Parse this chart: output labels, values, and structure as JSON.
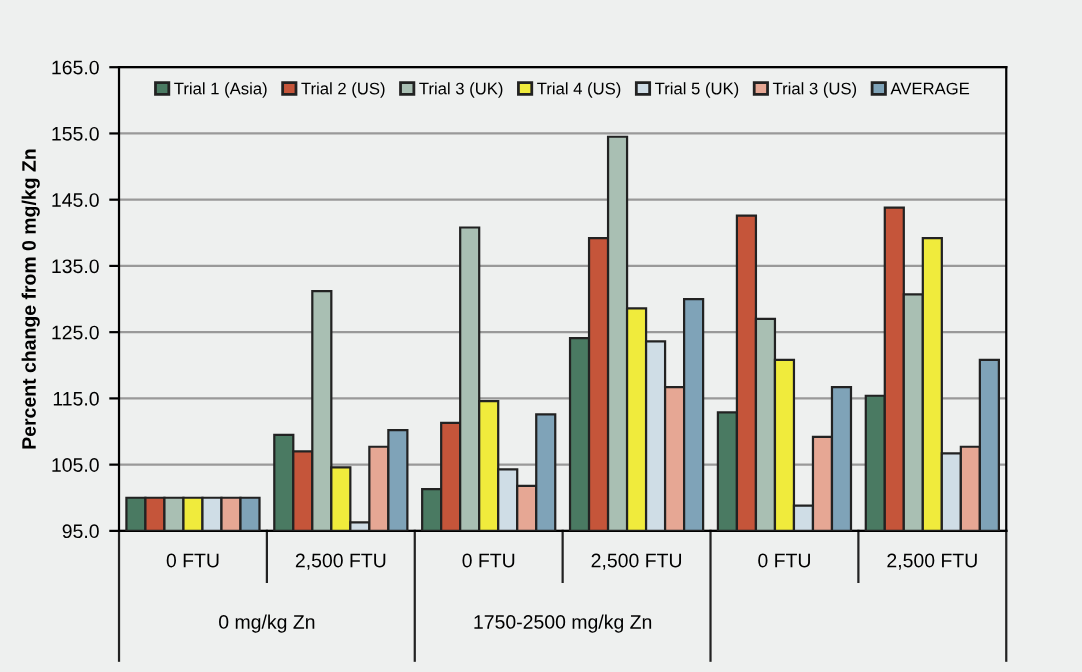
{
  "chart_data": {
    "type": "bar",
    "ylabel": "Percent change from 0 mg/kg Zn",
    "categories": [
      "0 FTU",
      "2,500 FTU",
      "0 FTU",
      "2,500 FTU",
      "0 FTU",
      "2,500 FTU"
    ],
    "series": [
      {
        "name": "Trial 1 (Asia)",
        "color": "#4a7a62",
        "values": [
          100,
          109.5,
          101.3,
          124.1,
          112.9,
          115.4
        ]
      },
      {
        "name": "Trial 2 (US)",
        "color": "#c5553a",
        "values": [
          100,
          107.0,
          111.3,
          139.2,
          142.6,
          143.8
        ]
      },
      {
        "name": "Trial 3 (UK)",
        "color": "#a9bfb3",
        "values": [
          100,
          131.2,
          140.8,
          154.5,
          127.0,
          130.7
        ]
      },
      {
        "name": "Trial 4 (US)",
        "color": "#f0eb3c",
        "values": [
          100,
          104.6,
          114.6,
          128.6,
          120.8,
          139.2
        ]
      },
      {
        "name": "Trial 5 (UK)",
        "color": "#cfdde6",
        "values": [
          100,
          96.3,
          104.3,
          123.6,
          98.8,
          106.7
        ]
      },
      {
        "name": "Trial 3 (US)",
        "color": "#e6a794",
        "values": [
          100,
          107.7,
          101.8,
          116.7,
          109.2,
          107.7
        ]
      },
      {
        "name": "AVERAGE",
        "color": "#7fa3b8",
        "values": [
          100,
          110.2,
          112.6,
          130.0,
          116.7,
          120.8
        ]
      }
    ],
    "annotations": [
      "0 mg/kg Zn",
      "1750-2500 mg/kg Zn"
    ],
    "ylim": [
      95,
      165
    ],
    "yticks": [
      {
        "value": 95,
        "label": "95.0"
      },
      {
        "value": 105,
        "label": "105.0"
      },
      {
        "value": 115,
        "label": "115.0"
      },
      {
        "value": 125,
        "label": "125.0"
      },
      {
        "value": 135,
        "label": "135.0"
      },
      {
        "value": 145,
        "label": "145.0"
      },
      {
        "value": 155,
        "label": "155.0"
      },
      {
        "value": 165,
        "label": "165.0"
      }
    ],
    "grid": "y",
    "legend": "top"
  }
}
